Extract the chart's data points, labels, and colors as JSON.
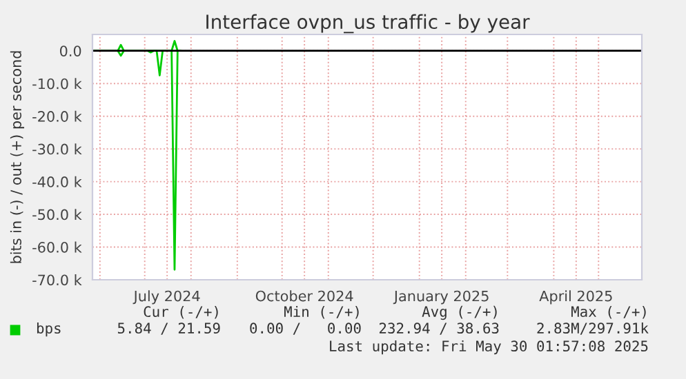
{
  "chart_data": {
    "type": "line",
    "title": "Interface ovpn_us traffic - by year",
    "ylabel": "bits in (-) / out (+) per second",
    "series": [
      {
        "name": "bps",
        "color": "#00cc00",
        "x": [
          "2024-05-27",
          "2024-06-13",
          "2024-06-15",
          "2024-06-17",
          "2024-07-19",
          "2024-07-21",
          "2024-07-23",
          "2024-07-25"
        ],
        "values": [
          0,
          0,
          1800,
          0,
          0,
          3000,
          0,
          0
        ]
      },
      {
        "color": "#00cc00",
        "x": [
          "2024-05-27",
          "2024-06-13",
          "2024-06-15",
          "2024-06-17",
          "2024-07-03",
          "2024-07-05",
          "2024-07-07",
          "2024-07-09",
          "2024-07-11",
          "2024-07-13",
          "2024-07-19",
          "2024-07-21",
          "2024-07-23",
          "2024-07-25"
        ],
        "values": [
          0,
          0,
          -1500,
          0,
          0,
          -500,
          0,
          0,
          -7500,
          0,
          0,
          -66900,
          0,
          0
        ]
      }
    ],
    "xlim": [
      "2024-05-27",
      "2025-05-30"
    ],
    "xticks": [
      {
        "value": "2024-06-01",
        "label": null
      },
      {
        "value": "2024-07-01",
        "label": null
      },
      {
        "value": "2024-07-16",
        "label": "July 2024"
      },
      {
        "value": "2024-08-01",
        "label": null
      },
      {
        "value": "2024-09-01",
        "label": null
      },
      {
        "value": "2024-10-01",
        "label": null
      },
      {
        "value": "2024-10-16",
        "label": "October 2024"
      },
      {
        "value": "2024-11-01",
        "label": null
      },
      {
        "value": "2024-12-01",
        "label": null
      },
      {
        "value": "2025-01-01",
        "label": null
      },
      {
        "value": "2025-01-16",
        "label": "January 2025"
      },
      {
        "value": "2025-02-01",
        "label": null
      },
      {
        "value": "2025-03-01",
        "label": null
      },
      {
        "value": "2025-04-01",
        "label": null
      },
      {
        "value": "2025-04-16",
        "label": "April 2025"
      },
      {
        "value": "2025-05-01",
        "label": null
      }
    ],
    "ylim": [
      -70000,
      5000
    ],
    "yticks": [
      {
        "value": 0,
        "label": "0.0"
      },
      {
        "value": -10000,
        "label": "-10.0 k"
      },
      {
        "value": -20000,
        "label": "-20.0 k"
      },
      {
        "value": -30000,
        "label": "-30.0 k"
      },
      {
        "value": -40000,
        "label": "-40.0 k"
      },
      {
        "value": -50000,
        "label": "-50.0 k"
      },
      {
        "value": -60000,
        "label": "-60.0 k"
      },
      {
        "value": -70000,
        "label": "-70.0 k"
      }
    ],
    "ref_lines": [
      {
        "axis": "y",
        "value": 0,
        "color": "#000000"
      }
    ],
    "grid": true,
    "legend": "bottom left",
    "annotations": [
      "Cur (-/+)",
      "Min (-/+)",
      "Avg (-/+)",
      "Max (-/+)",
      "5.84 / 21.59",
      "0.00 /   0.00",
      "232.94 / 38.63",
      "2.83M/297.91k",
      "Last update: Fri May 30 01:57:08 2025"
    ]
  }
}
